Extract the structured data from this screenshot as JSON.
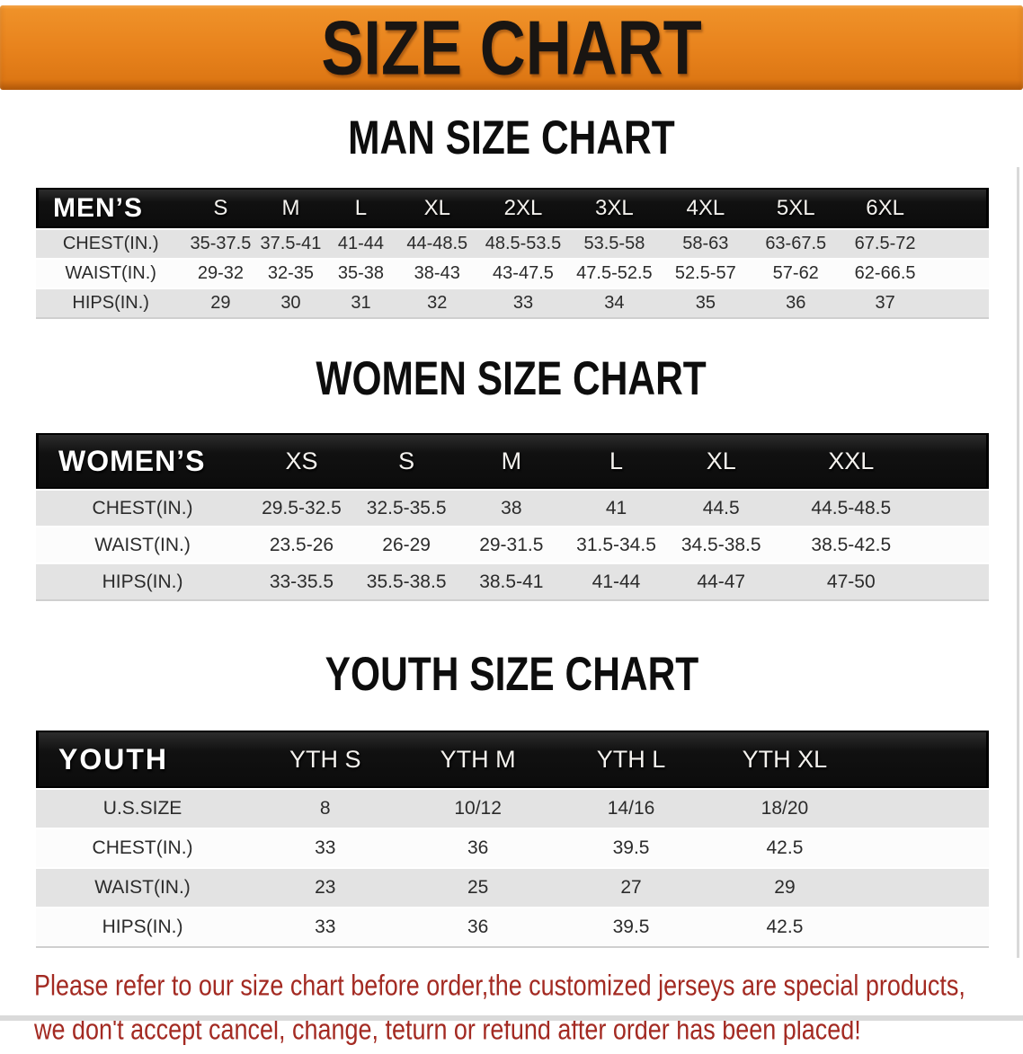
{
  "banner": {
    "title": "SIZE CHART"
  },
  "colors": {
    "banner_orange": "#e8831d",
    "table_header_black": "#111111",
    "row_gray": "#e3e3e3",
    "row_white": "#fcfcfc",
    "disclaimer_red": "#a32a22"
  },
  "sections": {
    "men": {
      "heading": "MAN SIZE CHART",
      "table": {
        "header": [
          "MEN’S",
          "S",
          "M",
          "L",
          "XL",
          "2XL",
          "3XL",
          "4XL",
          "5XL",
          "6XL"
        ],
        "rows": [
          {
            "label": "CHEST(IN.)",
            "values": [
              "35-37.5",
              "37.5-41",
              "41-44",
              "44-48.5",
              "48.5-53.5",
              "53.5-58",
              "58-63",
              "63-67.5",
              "67.5-72"
            ]
          },
          {
            "label": "WAIST(IN.)",
            "values": [
              "29-32",
              "32-35",
              "35-38",
              "38-43",
              "43-47.5",
              "47.5-52.5",
              "52.5-57",
              "57-62",
              "62-66.5"
            ]
          },
          {
            "label": "HIPS(IN.)",
            "values": [
              "29",
              "30",
              "31",
              "32",
              "33",
              "34",
              "35",
              "36",
              "37"
            ]
          }
        ]
      }
    },
    "women": {
      "heading": "WOMEN SIZE CHART",
      "table": {
        "header": [
          "WOMEN’S",
          "XS",
          "S",
          "M",
          "L",
          "XL",
          "XXL"
        ],
        "rows": [
          {
            "label": "CHEST(IN.)",
            "values": [
              "29.5-32.5",
              "32.5-35.5",
              "38",
              "41",
              "44.5",
              "44.5-48.5"
            ]
          },
          {
            "label": "WAIST(IN.)",
            "values": [
              "23.5-26",
              "26-29",
              "29-31.5",
              "31.5-34.5",
              "34.5-38.5",
              "38.5-42.5"
            ]
          },
          {
            "label": "HIPS(IN.)",
            "values": [
              "33-35.5",
              "35.5-38.5",
              "38.5-41",
              "41-44",
              "44-47",
              "47-50"
            ]
          }
        ]
      }
    },
    "youth": {
      "heading": "YOUTH SIZE CHART",
      "table": {
        "header": [
          "YOUTH",
          "YTH S",
          "YTH M",
          "YTH L",
          "YTH XL"
        ],
        "rows": [
          {
            "label": "U.S.SIZE",
            "values": [
              "8",
              "10/12",
              "14/16",
              "18/20"
            ]
          },
          {
            "label": "CHEST(IN.)",
            "values": [
              "33",
              "36",
              "39.5",
              "42.5"
            ]
          },
          {
            "label": "WAIST(IN.)",
            "values": [
              "23",
              "25",
              "27",
              "29"
            ]
          },
          {
            "label": "HIPS(IN.)",
            "values": [
              "33",
              "36",
              "39.5",
              "42.5"
            ]
          }
        ]
      }
    }
  },
  "disclaimer": {
    "line1": "Please refer to our size chart before order,the customized jerseys are special products,",
    "line2": "we don't accept cancel, change, teturn or refund after order has been placed!"
  }
}
